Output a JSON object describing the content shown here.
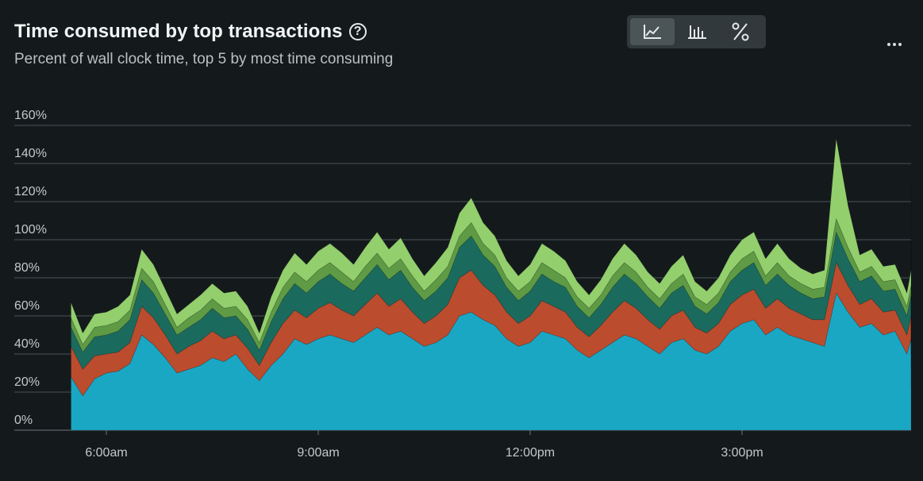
{
  "header": {
    "title": "Time consumed by top transactions",
    "help_symbol": "?",
    "subtitle": "Percent of wall clock time, top 5 by most time consuming"
  },
  "view_toggle": {
    "options": [
      {
        "name": "area",
        "icon": "area-chart-icon",
        "active": true
      },
      {
        "name": "bar",
        "icon": "bar-chart-icon",
        "active": false
      },
      {
        "name": "percent",
        "icon": "percent-icon",
        "active": false
      }
    ]
  },
  "more_menu": {
    "icon": "more-horizontal-icon"
  },
  "colors": {
    "background": "#141a1c",
    "grid": "#4a5356",
    "marker": "#e8333b",
    "series": [
      "#1aa7c4",
      "#bc4c2e",
      "#1b6a5e",
      "#5f9a45",
      "#93cf6d"
    ]
  },
  "chart_data": {
    "type": "area",
    "stacked": true,
    "title": "Time consumed by top transactions",
    "subtitle": "Percent of wall clock time, top 5 by most time consuming",
    "y_ticks": [
      "160%",
      "140%",
      "120%",
      "100%",
      "80%",
      "60%",
      "40%",
      "20%",
      "0%"
    ],
    "ylim": [
      0,
      160
    ],
    "x_ticks": [
      {
        "label": "6:00am",
        "hours": 6
      },
      {
        "label": "9:00am",
        "hours": 9
      },
      {
        "label": "12:00pm",
        "hours": 12
      },
      {
        "label": "3:00pm",
        "hours": 15
      }
    ],
    "x_start_hours": 5.5,
    "x_step_minutes": 10,
    "marker_hours": 17.8,
    "series": [
      {
        "name": "Transaction 1",
        "values": [
          28,
          18,
          27,
          30,
          31,
          35,
          50,
          45,
          38,
          30,
          32,
          34,
          38,
          36,
          40,
          32,
          26,
          34,
          40,
          48,
          45,
          48,
          50,
          48,
          46,
          50,
          54,
          50,
          52,
          48,
          44,
          46,
          50,
          60,
          62,
          58,
          55,
          48,
          44,
          46,
          52,
          50,
          48,
          42,
          38,
          42,
          46,
          50,
          48,
          44,
          40,
          46,
          48,
          42,
          40,
          44,
          52,
          56,
          58,
          50,
          54,
          50,
          48,
          46,
          44,
          72,
          62,
          54,
          56,
          50,
          52,
          40,
          48,
          44,
          36,
          42,
          48,
          54,
          50,
          44,
          42,
          38,
          40,
          44,
          50,
          46,
          52,
          48,
          46,
          50,
          48,
          44,
          46,
          52,
          48,
          50,
          46,
          54,
          50,
          56,
          52,
          48,
          60,
          66,
          30,
          24,
          23,
          22,
          24
        ]
      },
      {
        "name": "Transaction 2",
        "values": [
          16,
          14,
          12,
          10,
          10,
          11,
          15,
          14,
          12,
          10,
          12,
          13,
          14,
          12,
          10,
          11,
          8,
          12,
          16,
          15,
          14,
          16,
          17,
          15,
          14,
          16,
          18,
          15,
          17,
          14,
          12,
          14,
          16,
          20,
          22,
          18,
          16,
          14,
          12,
          14,
          16,
          15,
          14,
          12,
          11,
          13,
          16,
          18,
          16,
          14,
          13,
          14,
          15,
          12,
          11,
          12,
          14,
          15,
          16,
          14,
          15,
          14,
          13,
          12,
          14,
          16,
          14,
          12,
          13,
          12,
          11,
          10,
          12,
          13,
          10,
          14,
          18,
          20,
          16,
          12,
          11,
          10,
          11,
          12,
          14,
          13,
          16,
          14,
          12,
          13,
          12,
          11,
          12,
          14,
          13,
          12,
          11,
          12,
          13,
          14,
          12,
          11,
          12,
          14,
          12,
          11,
          10,
          10,
          11
        ]
      },
      {
        "name": "Transaction 3",
        "values": [
          10,
          9,
          10,
          10,
          11,
          12,
          14,
          13,
          11,
          10,
          10,
          11,
          12,
          11,
          10,
          10,
          8,
          11,
          13,
          14,
          13,
          14,
          15,
          14,
          13,
          14,
          15,
          14,
          15,
          13,
          12,
          13,
          14,
          16,
          18,
          16,
          15,
          13,
          12,
          13,
          14,
          13,
          13,
          11,
          10,
          11,
          13,
          14,
          13,
          12,
          11,
          12,
          13,
          11,
          10,
          11,
          12,
          13,
          14,
          12,
          13,
          12,
          11,
          11,
          12,
          16,
          14,
          12,
          12,
          11,
          11,
          10,
          11,
          12,
          10,
          12,
          14,
          15,
          14,
          12,
          11,
          10,
          10,
          11,
          12,
          12,
          13,
          12,
          11,
          12,
          11,
          10,
          11,
          12,
          12,
          11,
          10,
          11,
          12,
          13,
          11,
          10,
          11,
          13,
          9,
          8,
          8,
          8,
          8
        ]
      },
      {
        "name": "Transaction 4",
        "values": [
          5,
          4,
          5,
          5,
          5,
          5,
          6,
          6,
          5,
          4,
          5,
          5,
          5,
          5,
          5,
          5,
          4,
          5,
          6,
          6,
          6,
          6,
          6,
          6,
          5,
          6,
          6,
          6,
          6,
          6,
          5,
          6,
          6,
          6,
          7,
          6,
          6,
          5,
          5,
          5,
          6,
          6,
          5,
          5,
          5,
          5,
          6,
          6,
          6,
          5,
          5,
          5,
          6,
          5,
          5,
          5,
          5,
          6,
          6,
          5,
          6,
          5,
          5,
          5,
          5,
          7,
          6,
          5,
          5,
          5,
          5,
          5,
          5,
          5,
          4,
          5,
          6,
          6,
          6,
          5,
          5,
          4,
          5,
          5,
          5,
          5,
          6,
          5,
          5,
          5,
          5,
          5,
          5,
          6,
          5,
          5,
          5,
          5,
          5,
          6,
          5,
          5,
          5,
          6,
          4,
          3,
          3,
          3,
          3
        ]
      },
      {
        "name": "Transaction 5",
        "values": [
          8,
          6,
          7,
          7,
          8,
          8,
          10,
          9,
          8,
          7,
          7,
          8,
          8,
          8,
          8,
          7,
          5,
          8,
          9,
          10,
          9,
          10,
          10,
          10,
          9,
          10,
          11,
          10,
          11,
          9,
          8,
          9,
          10,
          12,
          13,
          11,
          10,
          9,
          8,
          9,
          10,
          10,
          9,
          8,
          7,
          8,
          9,
          10,
          9,
          8,
          8,
          9,
          10,
          8,
          7,
          8,
          9,
          10,
          10,
          9,
          10,
          9,
          8,
          8,
          9,
          42,
          22,
          9,
          9,
          8,
          8,
          7,
          8,
          9,
          7,
          8,
          10,
          11,
          10,
          9,
          8,
          7,
          8,
          9,
          9,
          9,
          10,
          9,
          8,
          9,
          8,
          8,
          9,
          10,
          9,
          9,
          8,
          9,
          9,
          30,
          10,
          8,
          10,
          30,
          6,
          5,
          5,
          5,
          5
        ]
      }
    ]
  }
}
